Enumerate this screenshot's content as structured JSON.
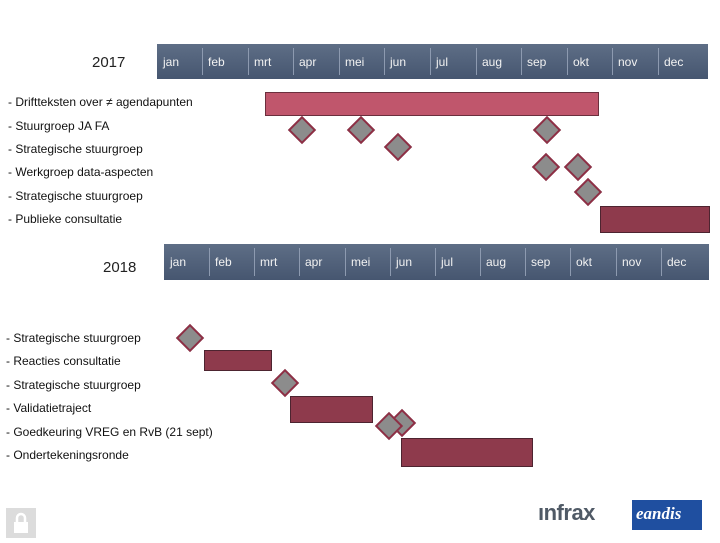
{
  "year_2017": "2017",
  "year_2018": "2018",
  "months": [
    "jan",
    "feb",
    "mrt",
    "apr",
    "mei",
    "jun",
    "jul",
    "aug",
    "sep",
    "okt",
    "nov",
    "dec"
  ],
  "tasks_2017": [
    "- Driftteksten over ≠ agendapunten",
    "- Stuurgroep JA FA",
    "- Strategische stuurgroep",
    "- Werkgroep data-aspecten",
    "- Strategische stuurgroep",
    "- Publieke consultatie"
  ],
  "tasks_2018": [
    "- Strategische stuurgroep",
    "- Reacties consultatie",
    "- Strategische stuurgroep",
    "- Validatietraject",
    "- Goedkeuring VREG en RvB (21 sept)",
    "- Ondertekeningsronde"
  ],
  "logos": {
    "infrax": "ınfrax",
    "eandis": "eandis"
  },
  "colors": {
    "timeline": "#4f5f78",
    "bar_pink": "#c0566c",
    "bar_dark": "#8e3a4c",
    "milestone": "#8c8c8c"
  },
  "icons": [
    "lock-icon",
    "milestone-diamond"
  ]
}
